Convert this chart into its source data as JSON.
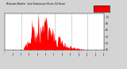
{
  "title": "Milwaukee Weather Solar Radiation per Minute (24 Hours)",
  "bg_color": "#d4d4d4",
  "plot_bg_color": "#ffffff",
  "fill_color": "#ff0000",
  "line_color": "#cc0000",
  "legend_color": "#ff0000",
  "grid_color": "#888888",
  "tick_color": "#000000",
  "num_points": 1440,
  "peak_minute": 480,
  "peak_value": 1.0,
  "ylim": [
    0,
    1.1
  ],
  "xlim": [
    0,
    1440
  ],
  "dashed_lines_x": [
    240,
    480,
    720,
    960,
    1200
  ],
  "ylabel_ticks": [
    0.0,
    0.2,
    0.4,
    0.6,
    0.8,
    1.0
  ],
  "xlabel_ticks": [
    0,
    120,
    240,
    360,
    480,
    600,
    720,
    840,
    960,
    1080,
    1200,
    1320,
    1439
  ]
}
